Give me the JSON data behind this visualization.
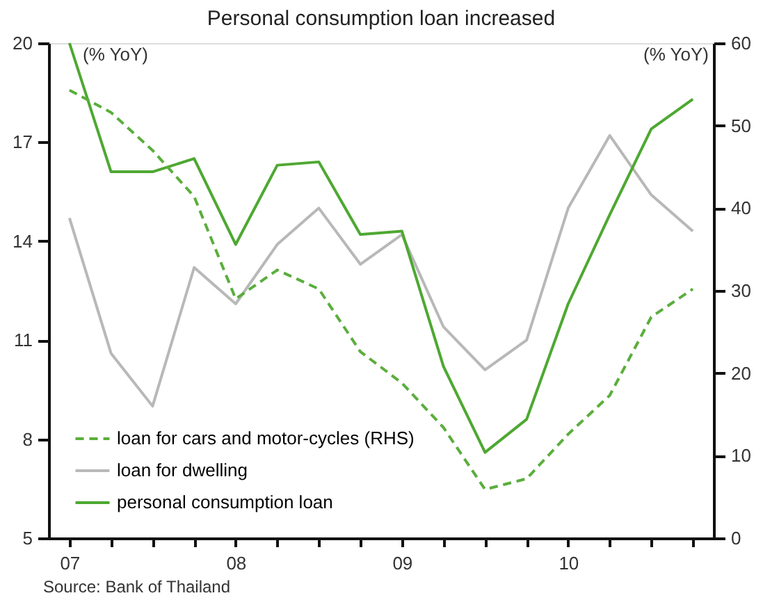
{
  "chart_data": {
    "type": "line",
    "title": "Personal consumption loan increased",
    "categories": [
      "07",
      null,
      null,
      null,
      "08",
      null,
      null,
      null,
      "09",
      null,
      null,
      null,
      "10",
      null,
      null,
      null
    ],
    "series": [
      {
        "name": "loan for cars and motor-cycles (RHS)",
        "color": "#5aae3c",
        "axis": "y2",
        "line_style": "dashed",
        "values": [
          54.3,
          51.6,
          47,
          41.4,
          29.0,
          32.5,
          30.2,
          22.6,
          18.8,
          13.4,
          5.9,
          7.2,
          12.6,
          17.3,
          26.8,
          30.2
        ]
      },
      {
        "name": "loan for dwelling",
        "color": "#b8b8b8",
        "line_style": "solid",
        "values": [
          14.7,
          10.6,
          9.0,
          13.2,
          12.1,
          13.9,
          15.0,
          13.3,
          14.2,
          11.4,
          10.1,
          11.0,
          15.0,
          17.2,
          15.4,
          14.3
        ]
      },
      {
        "name": "personal consumption loan",
        "color": "#4ea832",
        "line_style": "solid",
        "values": [
          20.0,
          16.1,
          16.1,
          16.5,
          13.9,
          16.3,
          16.4,
          14.2,
          14.3,
          10.2,
          7.6,
          8.6,
          12.1,
          14.8,
          17.4,
          18.3
        ]
      }
    ],
    "ylabel": "(% YoY)",
    "y2label": "(% YoY)",
    "ylim": [
      5,
      20
    ],
    "yticks": [
      5,
      8,
      11,
      14,
      17,
      20
    ],
    "y2lim": [
      0,
      60
    ],
    "y2ticks": [
      0,
      10,
      20,
      30,
      40,
      50,
      60
    ],
    "grid": false,
    "legend": "bottom left",
    "annotations": [
      "Source: Bank of Thailand"
    ]
  }
}
